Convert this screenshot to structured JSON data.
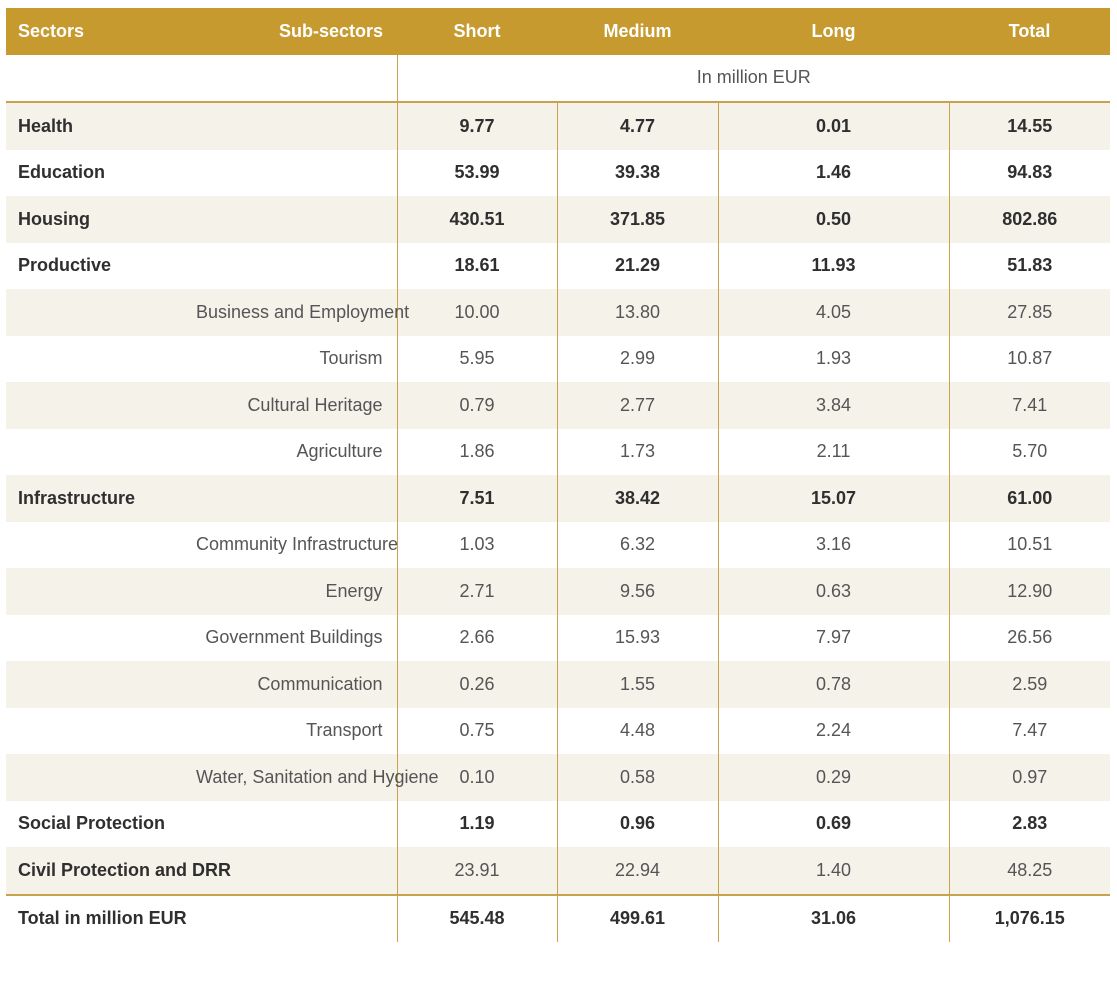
{
  "header": {
    "sectors": "Sectors",
    "sub_sectors": "Sub-sectors",
    "short": "Short",
    "medium": "Medium",
    "long": "Long",
    "total": "Total"
  },
  "unit_label": "In million EUR",
  "rows": [
    {
      "sector": "Health",
      "sub": "",
      "short": "9.77",
      "medium": "4.77",
      "long": "0.01",
      "total": "14.55",
      "style": "bold",
      "shade": true
    },
    {
      "sector": "Education",
      "sub": "",
      "short": "53.99",
      "medium": "39.38",
      "long": "1.46",
      "total": "94.83",
      "style": "bold",
      "shade": false
    },
    {
      "sector": "Housing",
      "sub": "",
      "short": "430.51",
      "medium": "371.85",
      "long": "0.50",
      "total": "802.86",
      "style": "bold",
      "shade": true
    },
    {
      "sector": "Productive",
      "sub": "",
      "short": "18.61",
      "medium": "21.29",
      "long": "11.93",
      "total": "51.83",
      "style": "bold",
      "shade": false
    },
    {
      "sector": "",
      "sub": "Business and Employment",
      "short": "10.00",
      "medium": "13.80",
      "long": "4.05",
      "total": "27.85",
      "style": "sub",
      "shade": true
    },
    {
      "sector": "",
      "sub": "Tourism",
      "short": "5.95",
      "medium": "2.99",
      "long": "1.93",
      "total": "10.87",
      "style": "sub",
      "shade": false
    },
    {
      "sector": "",
      "sub": "Cultural Heritage",
      "short": "0.79",
      "medium": "2.77",
      "long": "3.84",
      "total": "7.41",
      "style": "sub",
      "shade": true
    },
    {
      "sector": "",
      "sub": "Agriculture",
      "short": "1.86",
      "medium": "1.73",
      "long": "2.11",
      "total": "5.70",
      "style": "sub",
      "shade": false
    },
    {
      "sector": "Infrastructure",
      "sub": "",
      "short": "7.51",
      "medium": "38.42",
      "long": "15.07",
      "total": "61.00",
      "style": "bold",
      "shade": true
    },
    {
      "sector": "",
      "sub": "Community Infrastructure",
      "short": "1.03",
      "medium": "6.32",
      "long": "3.16",
      "total": "10.51",
      "style": "sub",
      "shade": false
    },
    {
      "sector": "",
      "sub": "Energy",
      "short": "2.71",
      "medium": "9.56",
      "long": "0.63",
      "total": "12.90",
      "style": "sub",
      "shade": true
    },
    {
      "sector": "",
      "sub": "Government Buildings",
      "short": "2.66",
      "medium": "15.93",
      "long": "7.97",
      "total": "26.56",
      "style": "sub",
      "shade": false
    },
    {
      "sector": "",
      "sub": "Communication",
      "short": "0.26",
      "medium": "1.55",
      "long": "0.78",
      "total": "2.59",
      "style": "sub",
      "shade": true
    },
    {
      "sector": "",
      "sub": "Transport",
      "short": "0.75",
      "medium": "4.48",
      "long": "2.24",
      "total": "7.47",
      "style": "sub",
      "shade": false
    },
    {
      "sector": "",
      "sub": "Water, Sanitation and Hygiene",
      "short": "0.10",
      "medium": "0.58",
      "long": "0.29",
      "total": "0.97",
      "style": "sub",
      "shade": true
    },
    {
      "sector": "Social Protection",
      "sub": "",
      "short": "1.19",
      "medium": "0.96",
      "long": "0.69",
      "total": "2.83",
      "style": "bold",
      "shade": false
    },
    {
      "sector": "Civil Protection and DRR",
      "sub": "",
      "short": "23.91",
      "medium": "22.94",
      "long": "1.40",
      "total": "48.25",
      "style": "plain",
      "shade": true
    }
  ],
  "total_row": {
    "label": "Total in million EUR",
    "short": "545.48",
    "medium": "499.61",
    "long": "31.06",
    "total": "1,076.15"
  },
  "colors": {
    "header_bg": "#c69a2e",
    "rule": "#c9a24d",
    "row_shade": "#f5f2ea"
  }
}
